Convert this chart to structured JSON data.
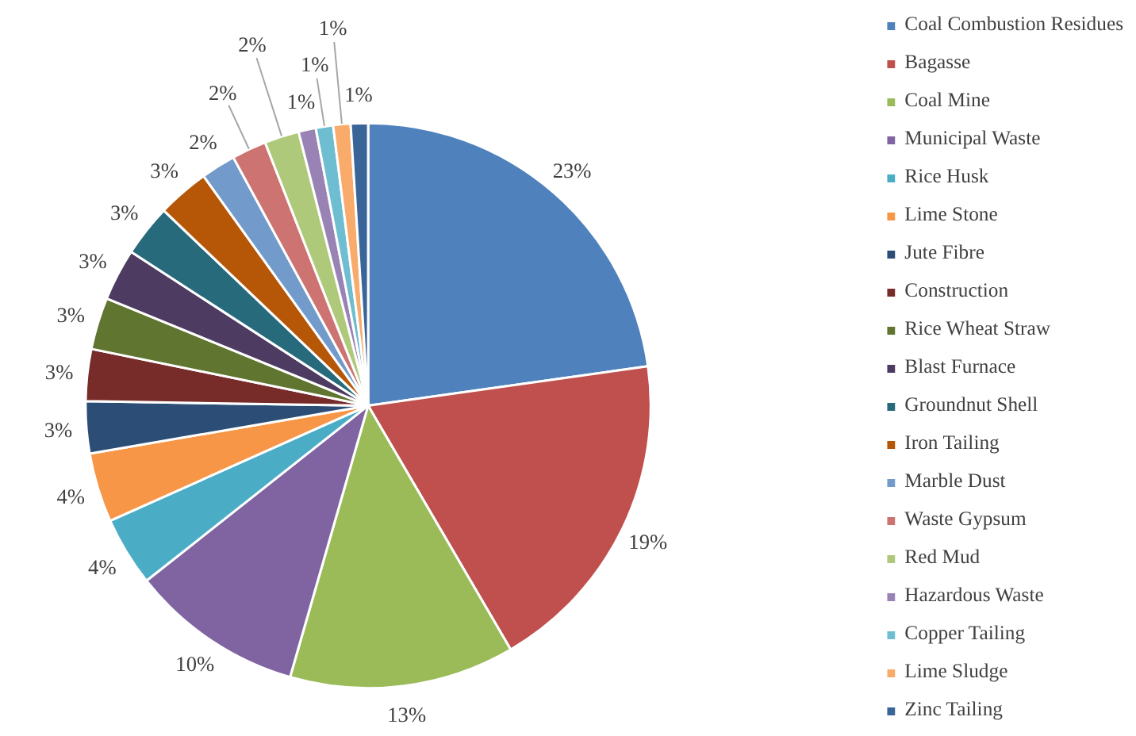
{
  "chart_data": {
    "type": "pie",
    "categories": [
      "Coal Combustion Residues",
      "Bagasse",
      "Coal Mine",
      "Municipal Waste",
      "Rice Husk",
      "Lime Stone",
      "Jute Fibre",
      "Construction",
      "Rice Wheat Straw",
      "Blast Furnace",
      "Groundnut Shell",
      "Iron Tailing",
      "Marble Dust",
      "Waste Gypsum",
      "Red Mud",
      "Hazardous Waste",
      "Copper Tailing",
      "Lime Sludge",
      "Zinc Tailing"
    ],
    "values": [
      23,
      19,
      13,
      10,
      4,
      4,
      3,
      3,
      3,
      3,
      3,
      3,
      2,
      2,
      2,
      1,
      1,
      1,
      1
    ],
    "value_labels": [
      "23%",
      "19%",
      "13%",
      "10%",
      "4%",
      "4%",
      "3%",
      "3%",
      "3%",
      "3%",
      "3%",
      "3%",
      "2%",
      "2%",
      "2%",
      "1%",
      "1%",
      "1%",
      "1%"
    ],
    "colors": [
      "#4f81bd",
      "#c0504d",
      "#9bbb59",
      "#8064a2",
      "#4bacc6",
      "#f79646",
      "#2c4d75",
      "#772c2a",
      "#5f7530",
      "#4d3b62",
      "#276a7c",
      "#b65708",
      "#729aca",
      "#cd7371",
      "#afc97a",
      "#9983b5",
      "#6fbdd1",
      "#f9ab6b",
      "#3a6598"
    ],
    "legend": "right"
  }
}
